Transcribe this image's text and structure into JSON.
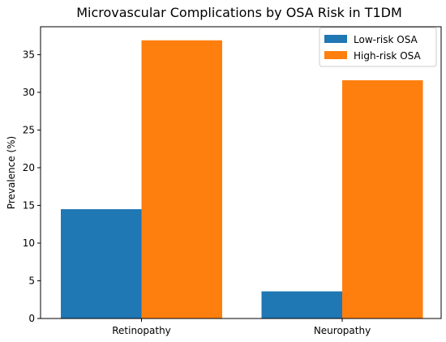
{
  "chart_data": {
    "type": "bar",
    "title": "Microvascular Complications by OSA Risk in T1DM",
    "xlabel": "",
    "ylabel": "Prevalence (%)",
    "categories": [
      "Retinopathy",
      "Neuropathy"
    ],
    "series": [
      {
        "name": "Low-risk OSA",
        "values": [
          14.5,
          3.6
        ],
        "color": "#1f77b4"
      },
      {
        "name": "High-risk OSA",
        "values": [
          36.9,
          31.6
        ],
        "color": "#ff7f0e"
      }
    ],
    "ylim": [
      0,
      38.7
    ],
    "yticks": [
      0,
      5,
      10,
      15,
      20,
      25,
      30,
      35
    ],
    "grid": false,
    "legend_position": "top-right"
  }
}
